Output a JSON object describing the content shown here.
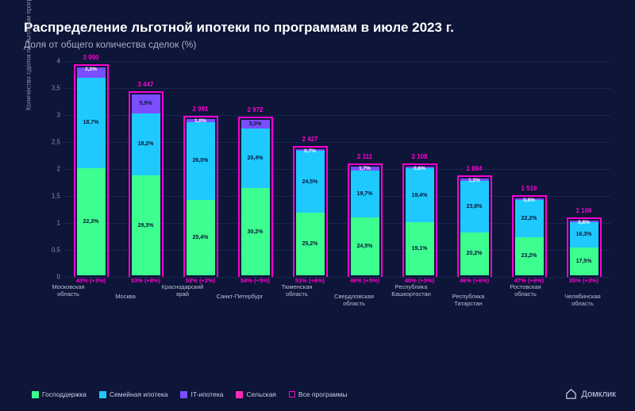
{
  "title": "Распределение льготной ипотеки по программам\nв июле 2023 г.",
  "subtitle": "Доля от общего количества сделок (%)",
  "ylabel": "Количество сделок по льготным программам (шт)",
  "colors": {
    "bg": "#0d1538",
    "grid": "#1a2550",
    "gospodderzhka": "#3dff8f",
    "semeinaya": "#1ec9ff",
    "it": "#7a4dff",
    "selskaya": "#ff2bb8",
    "outline": "#ff00d4",
    "text_light": "#c8d0e8"
  },
  "ymax": 4.2,
  "yticks": [
    "0",
    "0,5",
    "1",
    "1,5",
    "2",
    "2,5",
    "3",
    "3,5",
    "4"
  ],
  "bars": [
    {
      "region": "Московская область",
      "total": "3 950",
      "pct": "43% (+3%)",
      "segs": [
        {
          "v": 22.3,
          "l": "22,3%",
          "c": "gospodderzhka"
        },
        {
          "v": 18.7,
          "l": "18,7%",
          "c": "semeinaya"
        },
        {
          "v": 2.2,
          "l": "2,2%",
          "c": "it"
        }
      ],
      "totalH": 3.95
    },
    {
      "region": "Москва",
      "total": "3 447",
      "pct": "53% (+8%)",
      "segs": [
        {
          "v": 29.3,
          "l": "29,3%",
          "c": "gospodderzhka"
        },
        {
          "v": 18.2,
          "l": "18,2%",
          "c": "semeinaya"
        },
        {
          "v": 5.5,
          "l": "5,5%",
          "c": "it"
        }
      ],
      "totalH": 3.447
    },
    {
      "region": "Краснодарский край",
      "total": "2 991",
      "pct": "53% (+2%)",
      "segs": [
        {
          "v": 25.4,
          "l": "25,4%",
          "c": "gospodderzhka"
        },
        {
          "v": 26.0,
          "l": "26,0%",
          "c": "semeinaya"
        },
        {
          "v": 1.0,
          "l": "1,0%",
          "c": "it"
        }
      ],
      "totalH": 2.991
    },
    {
      "region": "Санкт-Петербург",
      "total": "2 972",
      "pct": "54% (+5%)",
      "segs": [
        {
          "v": 30.2,
          "l": "30,2%",
          "c": "gospodderzhka"
        },
        {
          "v": 20.4,
          "l": "20,4%",
          "c": "semeinaya"
        },
        {
          "v": 3.0,
          "l": "3,0%",
          "c": "it"
        }
      ],
      "totalH": 2.972
    },
    {
      "region": "Тюменская область",
      "total": "2 427",
      "pct": "51% (+6%)",
      "segs": [
        {
          "v": 25.2,
          "l": "25,2%",
          "c": "gospodderzhka"
        },
        {
          "v": 24.5,
          "l": "24,5%",
          "c": "semeinaya"
        },
        {
          "v": 0.7,
          "l": "0,7%",
          "c": "it"
        }
      ],
      "totalH": 2.427
    },
    {
      "region": "Свердловская область",
      "total": "2 111",
      "pct": "46% (+5%)",
      "segs": [
        {
          "v": 24.5,
          "l": "24,5%",
          "c": "gospodderzhka"
        },
        {
          "v": 19.7,
          "l": "19,7%",
          "c": "semeinaya"
        },
        {
          "v": 1.7,
          "l": "1,7%",
          "c": "it"
        }
      ],
      "totalH": 2.111
    },
    {
      "region": "Республика Башкортостан",
      "total": "2 108",
      "pct": "40% (+5%)",
      "segs": [
        {
          "v": 19.1,
          "l": "19,1%",
          "c": "gospodderzhka"
        },
        {
          "v": 19.4,
          "l": "19,4%",
          "c": "semeinaya"
        },
        {
          "v": 0.6,
          "l": "0,6%",
          "c": "it"
        }
      ],
      "totalH": 2.108
    },
    {
      "region": "Республика Татарстан",
      "total": "1 884",
      "pct": "46% (+6%)",
      "segs": [
        {
          "v": 20.2,
          "l": "20,2%",
          "c": "gospodderzhka"
        },
        {
          "v": 23.8,
          "l": "23,8%",
          "c": "semeinaya"
        },
        {
          "v": 1.2,
          "l": "1,2%",
          "c": "it"
        }
      ],
      "totalH": 1.884
    },
    {
      "region": "Ростовская область",
      "total": "1 516",
      "pct": "47% (+6%)",
      "segs": [
        {
          "v": 23.2,
          "l": "23,2%",
          "c": "gospodderzhka"
        },
        {
          "v": 22.2,
          "l": "22,2%",
          "c": "semeinaya"
        },
        {
          "v": 0.8,
          "l": "0,8%",
          "c": "it"
        }
      ],
      "totalH": 1.516
    },
    {
      "region": "Челябинская область",
      "total": "1 106",
      "pct": "35% (+3%)",
      "segs": [
        {
          "v": 17.5,
          "l": "17,5%",
          "c": "gospodderzhka"
        },
        {
          "v": 16.3,
          "l": "16,3%",
          "c": "semeinaya"
        },
        {
          "v": 0.8,
          "l": "0,8%",
          "c": "it"
        }
      ],
      "totalH": 1.106
    }
  ],
  "legend": [
    {
      "label": "Господдержка",
      "c": "gospodderzhka"
    },
    {
      "label": "Семейная ипотека",
      "c": "semeinaya"
    },
    {
      "label": "IT-ипотека",
      "c": "it"
    },
    {
      "label": "Сельская",
      "c": "selskaya"
    },
    {
      "label": "Все программы",
      "c": "outline"
    }
  ],
  "logo": "Домклик"
}
